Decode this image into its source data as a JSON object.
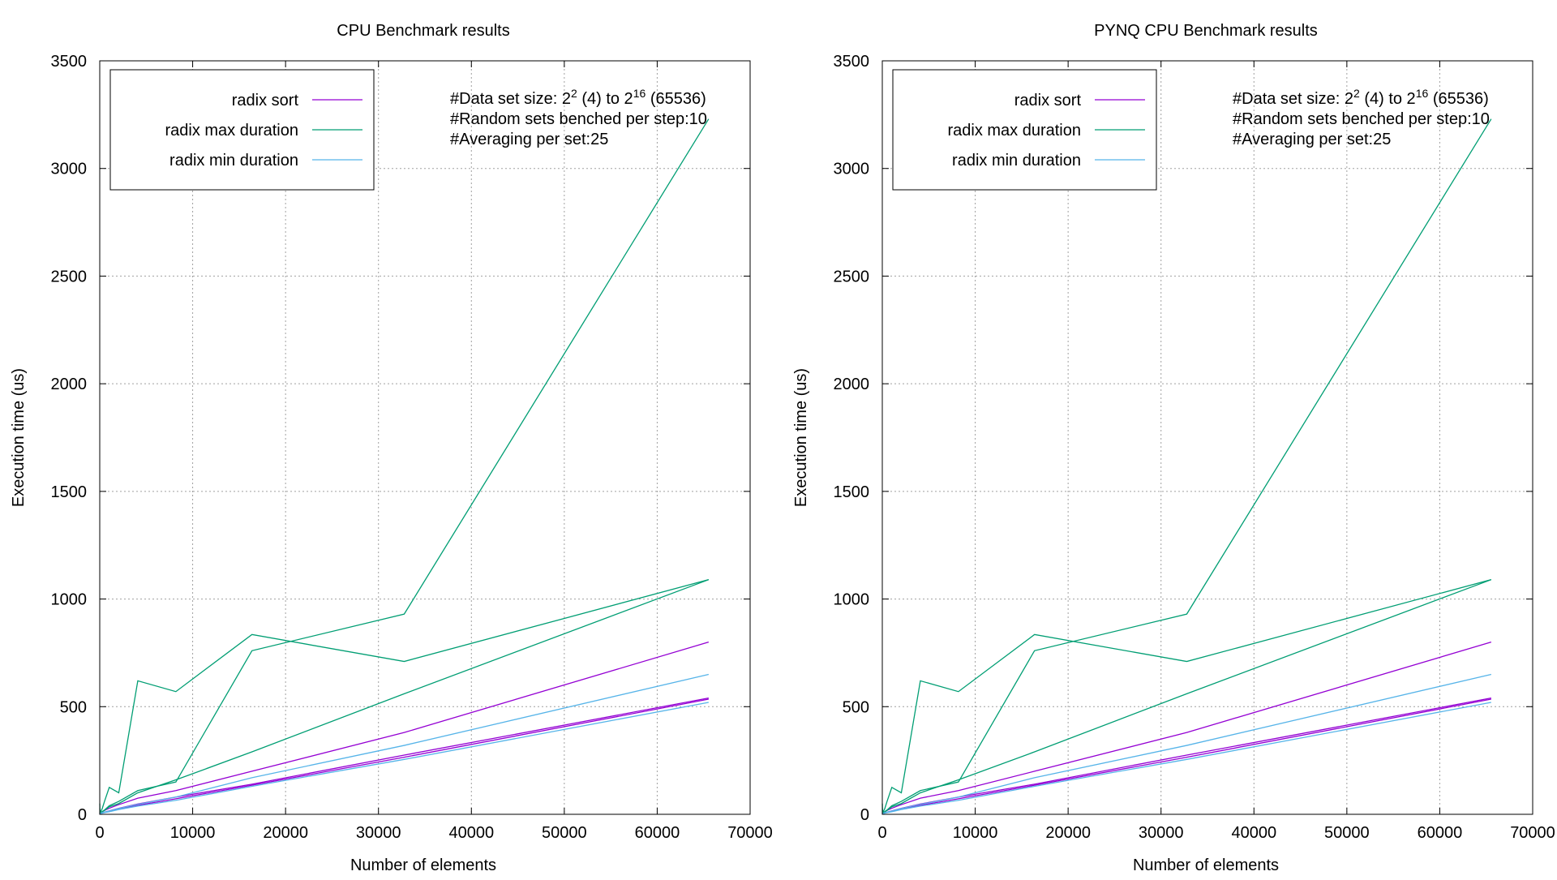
{
  "chart_data": [
    {
      "type": "line",
      "title": "CPU Benchmark results",
      "xlabel": "Number of elements",
      "ylabel": "Execution time (us)",
      "xlim": [
        0,
        70000
      ],
      "ylim": [
        0,
        3500
      ],
      "xticks": [
        0,
        10000,
        20000,
        30000,
        40000,
        50000,
        60000,
        70000
      ],
      "yticks": [
        0,
        500,
        1000,
        1500,
        2000,
        2500,
        3000,
        3500
      ],
      "grid": true,
      "legend_position": "top-left",
      "annotation": {
        "line1_prefix": "#Data set size: 2",
        "line1_exp1": "2",
        "line1_mid": " (4) to 2",
        "line1_exp2": "16",
        "line1_suffix": " (65536)",
        "line2": "#Random sets benched per step:10",
        "line3": "#Averaging per set:25"
      },
      "series": [
        {
          "name": "radix sort",
          "color": "#9400d3",
          "points": [
            [
              4,
              2
            ],
            [
              8,
              3
            ],
            [
              16,
              4
            ],
            [
              32,
              5
            ],
            [
              64,
              7
            ],
            [
              128,
              9
            ],
            [
              256,
              12
            ],
            [
              512,
              18
            ],
            [
              1024,
              28
            ],
            [
              2048,
              45
            ],
            [
              4096,
              75
            ],
            [
              8192,
              110
            ],
            [
              16384,
              200
            ],
            [
              32768,
              380
            ],
            [
              65536,
              800
            ]
          ]
        },
        {
          "name": "",
          "color": "#9400d3",
          "points": [
            [
              4,
              1
            ],
            [
              8,
              2
            ],
            [
              16,
              2
            ],
            [
              32,
              3
            ],
            [
              64,
              4
            ],
            [
              128,
              5
            ],
            [
              256,
              7
            ],
            [
              512,
              10
            ],
            [
              1024,
              16
            ],
            [
              2048,
              28
            ],
            [
              4096,
              48
            ],
            [
              8192,
              80
            ],
            [
              16384,
              140
            ],
            [
              32768,
              275
            ],
            [
              65536,
              540
            ]
          ]
        },
        {
          "name": "",
          "color": "#9400d3",
          "points": [
            [
              4,
              1
            ],
            [
              8,
              1
            ],
            [
              16,
              2
            ],
            [
              32,
              2
            ],
            [
              64,
              3
            ],
            [
              128,
              4
            ],
            [
              256,
              6
            ],
            [
              512,
              9
            ],
            [
              1024,
              14
            ],
            [
              2048,
              25
            ],
            [
              4096,
              42
            ],
            [
              8192,
              72
            ],
            [
              16384,
              135
            ],
            [
              32768,
              265
            ],
            [
              65536,
              535
            ]
          ]
        },
        {
          "name": "radix max duration",
          "color": "#009e73",
          "points": [
            [
              4,
              50
            ],
            [
              8,
              45
            ],
            [
              16,
              30
            ],
            [
              32,
              20
            ],
            [
              64,
              10
            ],
            [
              128,
              15
            ],
            [
              256,
              25
            ],
            [
              512,
              60
            ],
            [
              1024,
              125
            ],
            [
              2048,
              100
            ],
            [
              4096,
              620
            ],
            [
              8192,
              570
            ],
            [
              16384,
              835
            ],
            [
              32768,
              710
            ],
            [
              65536,
              1090
            ]
          ]
        },
        {
          "name": "",
          "color": "#009e73",
          "points": [
            [
              4,
              10
            ],
            [
              8,
              8
            ],
            [
              16,
              6
            ],
            [
              32,
              5
            ],
            [
              64,
              6
            ],
            [
              128,
              8
            ],
            [
              256,
              12
            ],
            [
              512,
              20
            ],
            [
              1024,
              40
            ],
            [
              2048,
              60
            ],
            [
              4096,
              110
            ],
            [
              8192,
              150
            ],
            [
              16384,
              760
            ],
            [
              32768,
              930
            ],
            [
              65536,
              3230
            ]
          ]
        },
        {
          "name": "",
          "color": "#009e73",
          "points": [
            [
              4,
              5
            ],
            [
              8,
              4
            ],
            [
              16,
              4
            ],
            [
              32,
              5
            ],
            [
              64,
              6
            ],
            [
              128,
              8
            ],
            [
              256,
              12
            ],
            [
              512,
              18
            ],
            [
              1024,
              35
            ],
            [
              2048,
              50
            ],
            [
              4096,
              100
            ],
            [
              8192,
              160
            ],
            [
              16384,
              290
            ],
            [
              32768,
              560
            ],
            [
              65536,
              1090
            ]
          ]
        },
        {
          "name": "radix min duration",
          "color": "#56b4e9",
          "points": [
            [
              4,
              1
            ],
            [
              8,
              1
            ],
            [
              16,
              1
            ],
            [
              32,
              2
            ],
            [
              64,
              3
            ],
            [
              128,
              3
            ],
            [
              256,
              5
            ],
            [
              512,
              8
            ],
            [
              1024,
              12
            ],
            [
              2048,
              22
            ],
            [
              4096,
              38
            ],
            [
              8192,
              65
            ],
            [
              16384,
              130
            ],
            [
              32768,
              255
            ],
            [
              65536,
              520
            ]
          ]
        },
        {
          "name": "",
          "color": "#56b4e9",
          "points": [
            [
              4,
              1
            ],
            [
              8,
              2
            ],
            [
              16,
              2
            ],
            [
              32,
              3
            ],
            [
              64,
              4
            ],
            [
              128,
              5
            ],
            [
              256,
              7
            ],
            [
              512,
              10
            ],
            [
              1024,
              15
            ],
            [
              2048,
              27
            ],
            [
              4096,
              46
            ],
            [
              8192,
              80
            ],
            [
              16384,
              170
            ],
            [
              32768,
              320
            ],
            [
              65536,
              650
            ]
          ]
        }
      ]
    },
    {
      "type": "line",
      "title": "PYNQ CPU Benchmark results",
      "xlabel": "Number of elements",
      "ylabel": "Execution time (us)",
      "xlim": [
        0,
        70000
      ],
      "ylim": [
        0,
        3500
      ],
      "xticks": [
        0,
        10000,
        20000,
        30000,
        40000,
        50000,
        60000,
        70000
      ],
      "yticks": [
        0,
        500,
        1000,
        1500,
        2000,
        2500,
        3000,
        3500
      ],
      "grid": true,
      "legend_position": "top-left",
      "annotation": {
        "line1_prefix": "#Data set size: 2",
        "line1_exp1": "2",
        "line1_mid": " (4) to 2",
        "line1_exp2": "16",
        "line1_suffix": " (65536)",
        "line2": "#Random sets benched per step:10",
        "line3": "#Averaging per set:25"
      },
      "series": [
        {
          "name": "radix sort",
          "color": "#9400d3",
          "points": [
            [
              4,
              2
            ],
            [
              8,
              3
            ],
            [
              16,
              4
            ],
            [
              32,
              5
            ],
            [
              64,
              7
            ],
            [
              128,
              9
            ],
            [
              256,
              12
            ],
            [
              512,
              18
            ],
            [
              1024,
              28
            ],
            [
              2048,
              45
            ],
            [
              4096,
              75
            ],
            [
              8192,
              110
            ],
            [
              16384,
              200
            ],
            [
              32768,
              380
            ],
            [
              65536,
              800
            ]
          ]
        },
        {
          "name": "",
          "color": "#9400d3",
          "points": [
            [
              4,
              1
            ],
            [
              8,
              2
            ],
            [
              16,
              2
            ],
            [
              32,
              3
            ],
            [
              64,
              4
            ],
            [
              128,
              5
            ],
            [
              256,
              7
            ],
            [
              512,
              10
            ],
            [
              1024,
              16
            ],
            [
              2048,
              28
            ],
            [
              4096,
              48
            ],
            [
              8192,
              80
            ],
            [
              16384,
              140
            ],
            [
              32768,
              275
            ],
            [
              65536,
              540
            ]
          ]
        },
        {
          "name": "",
          "color": "#9400d3",
          "points": [
            [
              4,
              1
            ],
            [
              8,
              1
            ],
            [
              16,
              2
            ],
            [
              32,
              2
            ],
            [
              64,
              3
            ],
            [
              128,
              4
            ],
            [
              256,
              6
            ],
            [
              512,
              9
            ],
            [
              1024,
              14
            ],
            [
              2048,
              25
            ],
            [
              4096,
              42
            ],
            [
              8192,
              72
            ],
            [
              16384,
              135
            ],
            [
              32768,
              265
            ],
            [
              65536,
              535
            ]
          ]
        },
        {
          "name": "radix max duration",
          "color": "#009e73",
          "points": [
            [
              4,
              50
            ],
            [
              8,
              45
            ],
            [
              16,
              30
            ],
            [
              32,
              20
            ],
            [
              64,
              10
            ],
            [
              128,
              15
            ],
            [
              256,
              25
            ],
            [
              512,
              60
            ],
            [
              1024,
              125
            ],
            [
              2048,
              100
            ],
            [
              4096,
              620
            ],
            [
              8192,
              570
            ],
            [
              16384,
              835
            ],
            [
              32768,
              710
            ],
            [
              65536,
              1090
            ]
          ]
        },
        {
          "name": "",
          "color": "#009e73",
          "points": [
            [
              4,
              10
            ],
            [
              8,
              8
            ],
            [
              16,
              6
            ],
            [
              32,
              5
            ],
            [
              64,
              6
            ],
            [
              128,
              8
            ],
            [
              256,
              12
            ],
            [
              512,
              20
            ],
            [
              1024,
              40
            ],
            [
              2048,
              60
            ],
            [
              4096,
              110
            ],
            [
              8192,
              150
            ],
            [
              16384,
              760
            ],
            [
              32768,
              930
            ],
            [
              65536,
              3230
            ]
          ]
        },
        {
          "name": "",
          "color": "#009e73",
          "points": [
            [
              4,
              5
            ],
            [
              8,
              4
            ],
            [
              16,
              4
            ],
            [
              32,
              5
            ],
            [
              64,
              6
            ],
            [
              128,
              8
            ],
            [
              256,
              12
            ],
            [
              512,
              18
            ],
            [
              1024,
              35
            ],
            [
              2048,
              50
            ],
            [
              4096,
              100
            ],
            [
              8192,
              160
            ],
            [
              16384,
              290
            ],
            [
              32768,
              560
            ],
            [
              65536,
              1090
            ]
          ]
        },
        {
          "name": "radix min duration",
          "color": "#56b4e9",
          "points": [
            [
              4,
              1
            ],
            [
              8,
              1
            ],
            [
              16,
              1
            ],
            [
              32,
              2
            ],
            [
              64,
              3
            ],
            [
              128,
              3
            ],
            [
              256,
              5
            ],
            [
              512,
              8
            ],
            [
              1024,
              12
            ],
            [
              2048,
              22
            ],
            [
              4096,
              38
            ],
            [
              8192,
              65
            ],
            [
              16384,
              130
            ],
            [
              32768,
              255
            ],
            [
              65536,
              520
            ]
          ]
        },
        {
          "name": "",
          "color": "#56b4e9",
          "points": [
            [
              4,
              1
            ],
            [
              8,
              2
            ],
            [
              16,
              2
            ],
            [
              32,
              3
            ],
            [
              64,
              4
            ],
            [
              128,
              5
            ],
            [
              256,
              7
            ],
            [
              512,
              10
            ],
            [
              1024,
              15
            ],
            [
              2048,
              27
            ],
            [
              4096,
              46
            ],
            [
              8192,
              80
            ],
            [
              16384,
              170
            ],
            [
              32768,
              320
            ],
            [
              65536,
              650
            ]
          ]
        }
      ]
    }
  ]
}
